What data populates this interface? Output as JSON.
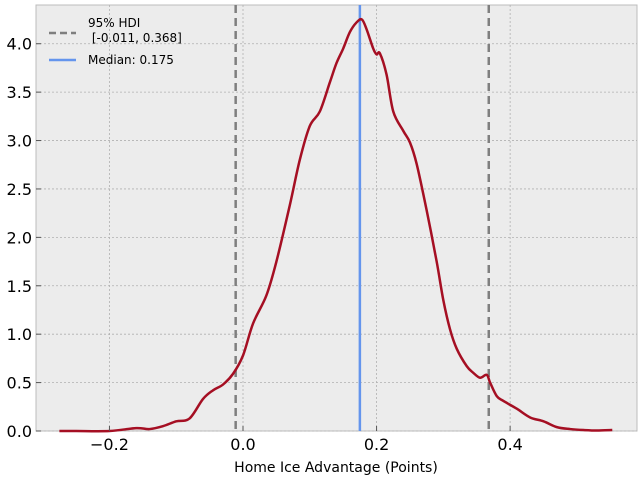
{
  "chart_data": {
    "type": "line",
    "xlabel": "Home Ice Advantage (Points)",
    "ylabel": "",
    "xlim": [
      -0.31,
      0.59
    ],
    "ylim": [
      0,
      4.4
    ],
    "xticks": [
      -0.2,
      0.0,
      0.2,
      0.4
    ],
    "xtick_labels": [
      "−0.2",
      "0.0",
      "0.2",
      "0.4"
    ],
    "yticks": [
      0.0,
      0.5,
      1.0,
      1.5,
      2.0,
      2.5,
      3.0,
      3.5,
      4.0
    ],
    "ytick_labels": [
      "0.0",
      "0.5",
      "1.0",
      "1.5",
      "2.0",
      "2.5",
      "3.0",
      "3.5",
      "4.0"
    ],
    "grid": true,
    "legend_position": "top-left",
    "series": [
      {
        "name": "",
        "color": "#a50f23",
        "x": [
          -0.275,
          -0.25,
          -0.2,
          -0.16,
          -0.14,
          -0.12,
          -0.1,
          -0.08,
          -0.06,
          -0.045,
          -0.03,
          -0.015,
          0.0,
          0.015,
          0.035,
          0.05,
          0.07,
          0.085,
          0.1,
          0.115,
          0.13,
          0.14,
          0.15,
          0.16,
          0.17,
          0.178,
          0.185,
          0.195,
          0.2,
          0.205,
          0.215,
          0.225,
          0.24,
          0.25,
          0.26,
          0.275,
          0.29,
          0.3,
          0.31,
          0.32,
          0.335,
          0.345,
          0.355,
          0.365,
          0.37,
          0.38,
          0.39,
          0.41,
          0.43,
          0.45,
          0.47,
          0.49,
          0.51,
          0.53,
          0.553
        ],
        "values": [
          0.0,
          0.0,
          0.0,
          0.03,
          0.02,
          0.05,
          0.1,
          0.13,
          0.33,
          0.42,
          0.48,
          0.59,
          0.78,
          1.11,
          1.4,
          1.75,
          2.33,
          2.8,
          3.15,
          3.3,
          3.6,
          3.8,
          3.95,
          4.12,
          4.22,
          4.25,
          4.15,
          3.95,
          3.89,
          3.9,
          3.68,
          3.3,
          3.1,
          2.98,
          2.76,
          2.28,
          1.75,
          1.35,
          1.05,
          0.85,
          0.67,
          0.6,
          0.55,
          0.58,
          0.5,
          0.36,
          0.31,
          0.23,
          0.14,
          0.1,
          0.04,
          0.02,
          0.01,
          0.005,
          0.01
        ]
      }
    ],
    "vertical_lines": [
      {
        "x": -0.011,
        "color": "#7f7f7f",
        "style": "dashed",
        "legend_label": "95% HDI\n [-0.011, 0.368]"
      },
      {
        "x": 0.368,
        "color": "#7f7f7f",
        "style": "dashed",
        "legend_label": ""
      },
      {
        "x": 0.175,
        "color": "#6495ed",
        "style": "solid",
        "legend_label": "Median: 0.175"
      }
    ],
    "colors": {
      "plot_background": "#ececec",
      "grid": "#b0b0b0",
      "density": "#a50f23",
      "hdi": "#7f7f7f",
      "median": "#6495ed"
    }
  },
  "legend": {
    "hdi_label_line1": "95% HDI",
    "hdi_label_line2": " [-0.011, 0.368]",
    "median_label": "Median: 0.175"
  }
}
